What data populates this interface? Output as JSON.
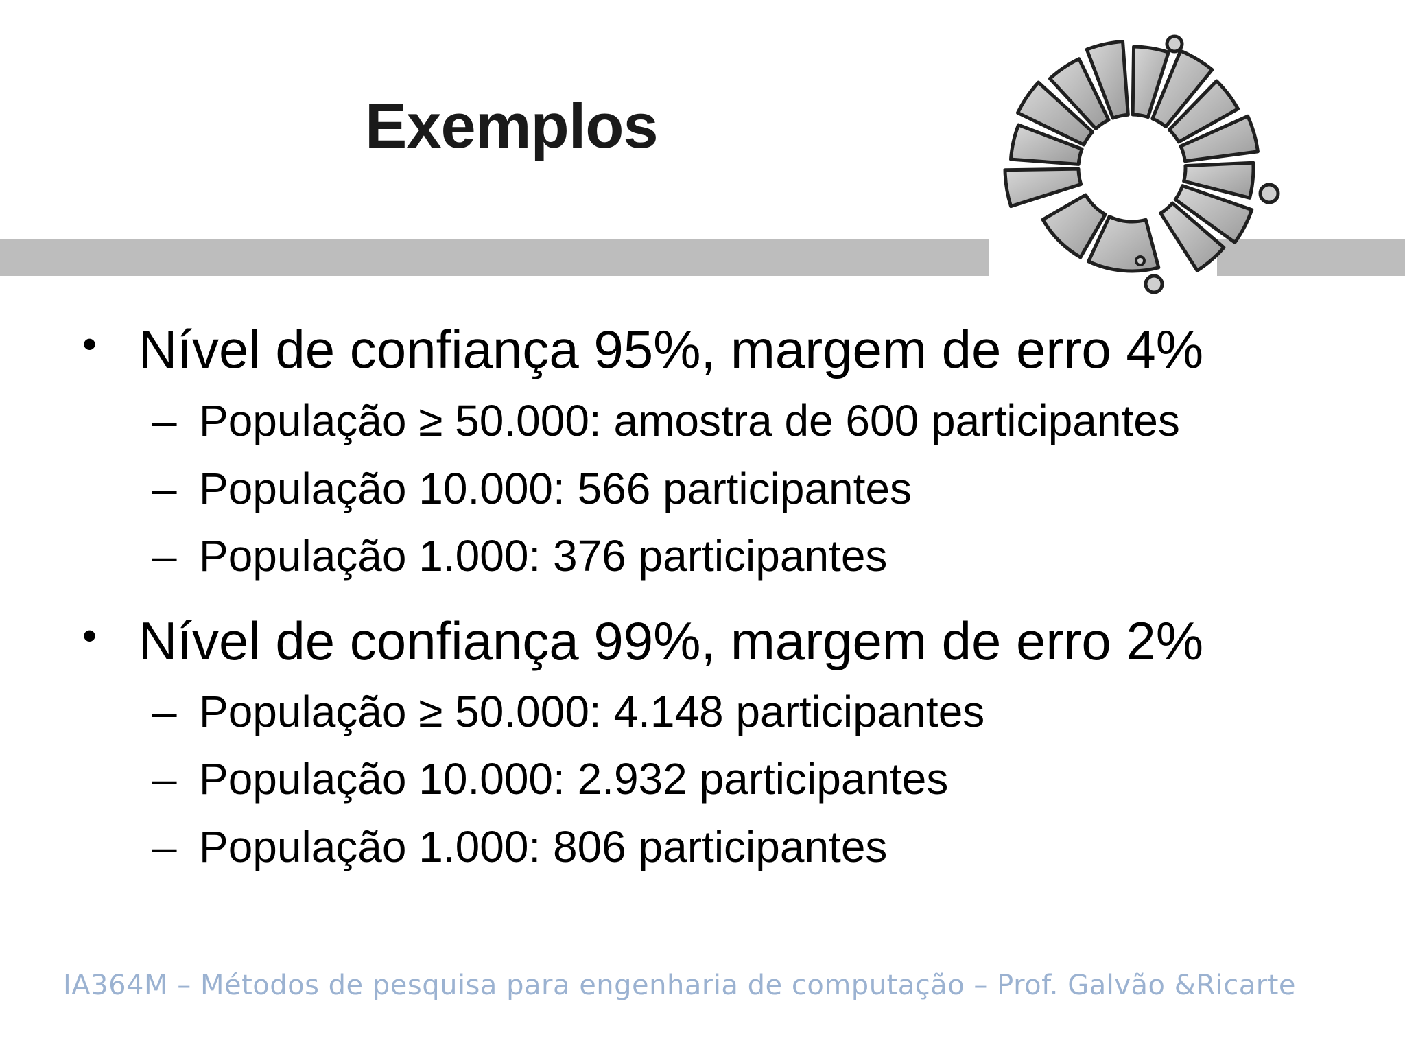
{
  "slide": {
    "title": "Exemplos",
    "bullets": [
      {
        "bullet_symbol": "•",
        "text": "Nível de confiança 95%, margem de erro 4%",
        "subitems": [
          {
            "dash": "–",
            "text": "População ≥ 50.000: amostra de 600 participantes"
          },
          {
            "dash": "–",
            "text": "População 10.000: 566 participantes"
          },
          {
            "dash": "–",
            "text": "População 1.000: 376 participantes"
          }
        ]
      },
      {
        "bullet_symbol": "•",
        "text": "Nível de confiança 99%, margem de erro 2%",
        "subitems": [
          {
            "dash": "–",
            "text": "População ≥ 50.000: 4.148 participantes"
          },
          {
            "dash": "–",
            "text": "População 10.000: 2.932 participantes"
          },
          {
            "dash": "–",
            "text": "População 1.000: 806 participantes"
          }
        ]
      }
    ],
    "footer": "IA364M – Métodos de pesquisa para engenharia de computação – Prof.  Galvão &Ricarte"
  },
  "logo": {
    "icon": "university-logo-icon"
  },
  "colors": {
    "bar": "#bdbdbd",
    "title": "#1a1a1a",
    "footer": "#9bb2d1"
  }
}
